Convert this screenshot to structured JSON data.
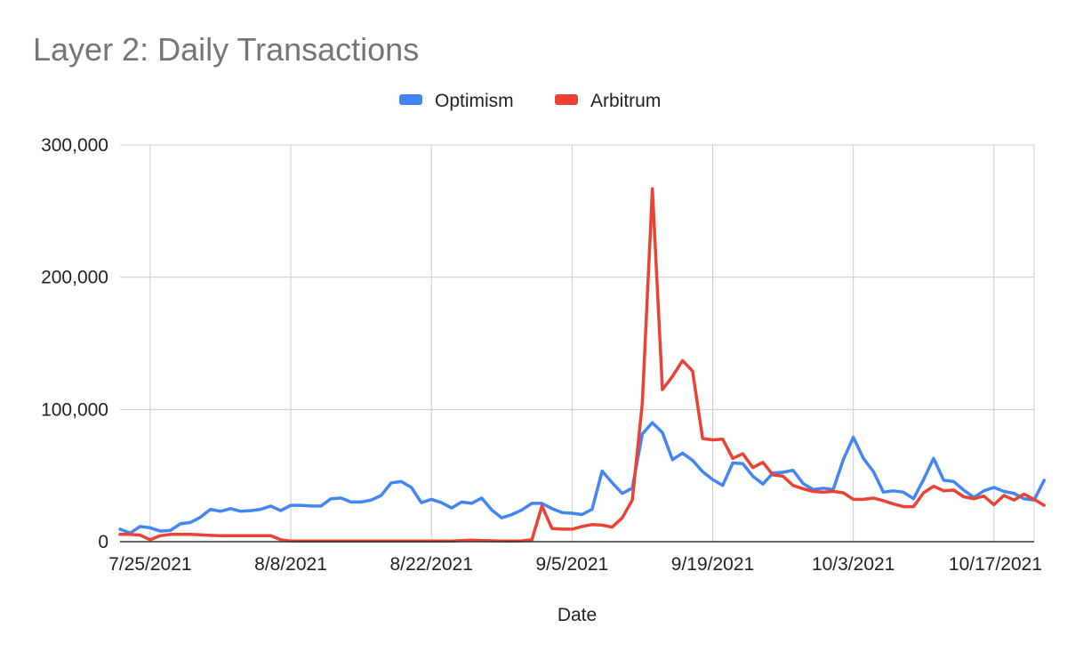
{
  "chart_data": {
    "type": "line",
    "title": "Layer 2: Daily Transactions",
    "xlabel": "Date",
    "ylabel": "",
    "ylim": [
      0,
      300000
    ],
    "yticks": [
      0,
      100000,
      200000,
      300000
    ],
    "ytick_labels": [
      "0",
      "100,000",
      "200,000",
      "300,000"
    ],
    "x_start": "7/22/2021",
    "x_range": [
      "7/22/2021",
      "10/21/2021"
    ],
    "xtick_dates": [
      "7/25/2021",
      "8/8/2021",
      "8/22/2021",
      "9/5/2021",
      "9/19/2021",
      "10/3/2021",
      "10/17/2021"
    ],
    "xtick_labels": [
      "7/25/2021",
      "8/8/2021",
      "8/22/2021",
      "9/5/2021",
      "9/19/2021",
      "10/3/2021",
      "10/17/2021"
    ],
    "grid": true,
    "legend_position": "top",
    "series": [
      {
        "name": "Optimism",
        "color": "#4285f4",
        "values": [
          9500,
          6500,
          11500,
          10500,
          8000,
          8500,
          13500,
          14500,
          18500,
          24500,
          23000,
          25000,
          23000,
          23500,
          24500,
          27000,
          23500,
          27500,
          27500,
          27000,
          27000,
          32500,
          33000,
          30000,
          30000,
          31500,
          35000,
          44500,
          45500,
          41000,
          29500,
          32000,
          29500,
          25500,
          30000,
          29000,
          33000,
          24000,
          18000,
          20500,
          24000,
          29000,
          29000,
          25000,
          22000,
          21500,
          20500,
          24500,
          53500,
          44500,
          36500,
          40500,
          81500,
          90000,
          82500,
          62000,
          67000,
          61500,
          53000,
          47000,
          42500,
          59500,
          59000,
          49500,
          43500,
          52000,
          52500,
          54000,
          44000,
          39500,
          40500,
          39500,
          62000,
          79000,
          63000,
          53000,
          37500,
          38500,
          37500,
          32500,
          47000,
          63000,
          46500,
          45500,
          39000,
          33500,
          38500,
          41000,
          38000,
          36500,
          32500,
          31500,
          46500
        ]
      },
      {
        "name": "Arbitrum",
        "color": "#ea4335",
        "values": [
          5500,
          5500,
          5000,
          1500,
          4500,
          5500,
          5500,
          5500,
          5200,
          4800,
          4500,
          4500,
          4500,
          4600,
          4600,
          4600,
          1500,
          500,
          500,
          500,
          500,
          500,
          500,
          500,
          500,
          500,
          500,
          500,
          500,
          500,
          500,
          500,
          500,
          500,
          800,
          1200,
          900,
          700,
          500,
          500,
          600,
          1500,
          27000,
          10000,
          9500,
          9500,
          11500,
          13000,
          12500,
          11000,
          18000,
          31500,
          105000,
          267000,
          115000,
          125000,
          137000,
          129000,
          78000,
          77000,
          77500,
          63000,
          66500,
          56000,
          60000,
          50500,
          49500,
          42500,
          40000,
          38000,
          37500,
          38000,
          37000,
          32000,
          32000,
          33000,
          31000,
          28500,
          26500,
          26500,
          37000,
          42000,
          38500,
          39000,
          34000,
          32500,
          34500,
          28000,
          35000,
          31500,
          36000,
          32000,
          27500
        ]
      }
    ]
  }
}
